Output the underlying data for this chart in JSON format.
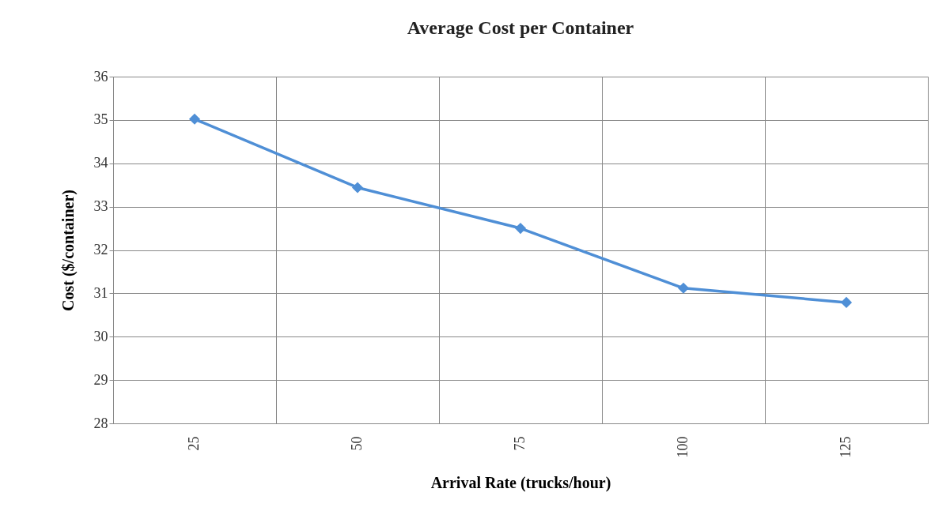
{
  "chart_data": {
    "type": "line",
    "title": "Average Cost per Container",
    "xlabel": "Arrival Rate (trucks/hour)",
    "ylabel": "Cost ($/container)",
    "categories": [
      "25",
      "50",
      "75",
      "100",
      "125"
    ],
    "series": [
      {
        "color": "#4f8fd6",
        "values": [
          35.02,
          33.44,
          32.5,
          31.12,
          30.79
        ]
      }
    ],
    "ylim": [
      28,
      36
    ],
    "yticks": [
      28,
      29,
      30,
      31,
      32,
      33,
      34,
      35,
      36
    ],
    "grid": true,
    "marker": "diamond",
    "line_style": "solid"
  }
}
